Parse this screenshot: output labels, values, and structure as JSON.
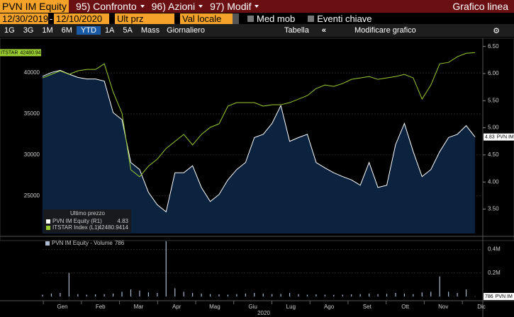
{
  "toolbar": {
    "security": "PVN IM Equity",
    "menu": [
      "95) Confronto",
      "96) Azioni",
      "97) Modif"
    ],
    "chart_kind": "Grafico linea",
    "start_date": "12/30/2019",
    "end_date": "12/10/2020",
    "field": "Ult prz",
    "currency": "Val locale",
    "options": [
      "Med mob",
      "Eventi chiave"
    ],
    "periods": [
      "1G",
      "3G",
      "1M",
      "6M",
      "YTD",
      "1A",
      "5A",
      "Mass"
    ],
    "active_period": "YTD",
    "frequency": "Giornaliero",
    "table": "Tabella",
    "edit": "Modificare grafico"
  },
  "chart_data": [
    {
      "type": "line",
      "legend_title": "Ultimo prezzo",
      "ylim": [
        20400,
        43900
      ],
      "yticks": [
        25000,
        30000,
        35000,
        40000
      ],
      "y2lim": [
        3.05,
        6.6
      ],
      "y2ticks": [
        {
          "value": 3.5,
          "label": "3.50"
        },
        {
          "value": 4,
          "label": "4.00"
        },
        {
          "value": 4.5,
          "label": "4.50"
        },
        {
          "value": 5,
          "label": "5.00"
        },
        {
          "value": 5.5,
          "label": "5.50"
        },
        {
          "value": 6,
          "label": "6.00"
        },
        {
          "value": 6.5,
          "label": "6.50"
        }
      ],
      "series": [
        {
          "name": "PVN IM Equity  (R1)",
          "tag": "PVN IM",
          "axis": "y2",
          "color": "#ffffff",
          "fill": "#0c2340",
          "values": [
            5.95,
            6.02,
            6.06,
            5.99,
            5.93,
            5.9,
            5.9,
            5.86,
            5.28,
            5.15,
            4.36,
            4.23,
            3.81,
            3.58,
            3.45,
            4.17,
            4.17,
            4.3,
            3.9,
            3.64,
            3.77,
            4.04,
            4.23,
            4.36,
            4.82,
            4.88,
            5.08,
            5.41,
            4.75,
            4.82,
            4.88,
            4.36,
            4.26,
            4.17,
            4.1,
            4.04,
            3.94,
            4.36,
            3.9,
            3.94,
            4.69,
            5.08,
            4.56,
            4.1,
            4.23,
            4.56,
            4.82,
            4.88,
            5.04,
            4.83
          ]
        },
        {
          "name": "ITSTAR Index  (L1)",
          "tag": "ITSTAR",
          "axis": "y",
          "color": "#9acd32",
          "values": [
            39400,
            39830,
            40260,
            39830,
            40260,
            40430,
            40430,
            41120,
            37670,
            35090,
            28190,
            27330,
            28620,
            29480,
            30780,
            31640,
            32500,
            31210,
            32500,
            33360,
            33790,
            35950,
            36380,
            36380,
            36380,
            35950,
            36120,
            36120,
            36380,
            36810,
            37240,
            38100,
            38530,
            38360,
            38710,
            39220,
            39400,
            39570,
            39220,
            39400,
            39570,
            39830,
            39400,
            36810,
            38530,
            41120,
            41290,
            41980,
            42410,
            42480.9414
          ]
        }
      ]
    },
    {
      "type": "bar",
      "name": "PVN IM Equity - Volume",
      "tag": "PVN IM",
      "color": "#aab8d0",
      "ylim": [
        0,
        500000
      ],
      "yticks": [
        {
          "value": 200000,
          "label": "0.2M"
        },
        {
          "value": 400000,
          "label": "0.4M"
        }
      ],
      "values": [
        15000,
        25000,
        30000,
        200000,
        20000,
        15000,
        18000,
        20000,
        25000,
        40000,
        60000,
        50000,
        35000,
        30000,
        470000,
        70000,
        40000,
        30000,
        25000,
        20000,
        18000,
        15000,
        20000,
        25000,
        30000,
        25000,
        20000,
        22000,
        30000,
        20000,
        15000,
        18000,
        15000,
        14000,
        15000,
        18000,
        20000,
        25000,
        20000,
        22000,
        30000,
        25000,
        20000,
        35000,
        40000,
        170000,
        40000,
        30000,
        60000,
        786
      ],
      "months": [
        "Gen",
        "Feb",
        "Mar",
        "Apr",
        "Mag",
        "Giu",
        "Lug",
        "Ago",
        "Set",
        "Ott",
        "Nov",
        "Dic"
      ],
      "year": "2020"
    }
  ]
}
